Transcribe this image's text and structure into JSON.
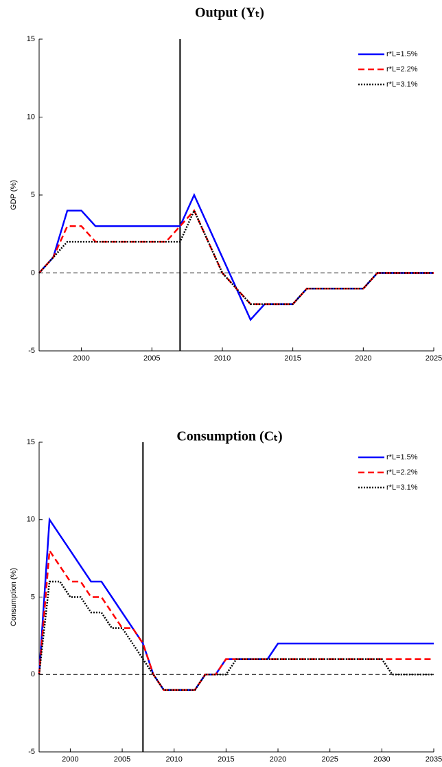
{
  "chart_data": [
    {
      "type": "line",
      "title": "Output (Yₜ)",
      "y_label": "GDP (%)",
      "x": [
        1997,
        1998,
        1999,
        2000,
        2001,
        2002,
        2003,
        2004,
        2005,
        2006,
        2007,
        2008,
        2009,
        2010,
        2011,
        2012,
        2013,
        2014,
        2015,
        2016,
        2017,
        2018,
        2019,
        2020,
        2021,
        2022,
        2023,
        2024,
        2025
      ],
      "series": [
        {
          "name": "r*L=1.5%",
          "color": "#0000ff",
          "style": "solid",
          "values": [
            0,
            1,
            4,
            4,
            3,
            3,
            3,
            3,
            3,
            3,
            3,
            5,
            3,
            1,
            -1,
            -3,
            -2,
            -2,
            -2,
            -1,
            -1,
            -1,
            -1,
            -1,
            0,
            0,
            0,
            0,
            0
          ]
        },
        {
          "name": "r*L=2.2%",
          "color": "#ff0000",
          "style": "dashed",
          "values": [
            0,
            1,
            3,
            3,
            2,
            2,
            2,
            2,
            2,
            2,
            3,
            4,
            2,
            0,
            -1,
            -2,
            -2,
            -2,
            -2,
            -1,
            -1,
            -1,
            -1,
            -1,
            0,
            0,
            0,
            0,
            0
          ]
        },
        {
          "name": "r*L=3.1%",
          "color": "#000000",
          "style": "dotted",
          "values": [
            0,
            1,
            2,
            2,
            2,
            2,
            2,
            2,
            2,
            2,
            2,
            4,
            2,
            0,
            -1,
            -2,
            -2,
            -2,
            -2,
            -1,
            -1,
            -1,
            -1,
            -1,
            0,
            0,
            0,
            0,
            0
          ]
        }
      ],
      "xlim": [
        1997,
        2025
      ],
      "xticks": [
        2000,
        2005,
        2010,
        2015,
        2020,
        2025
      ],
      "ylim": [
        -5,
        15
      ],
      "yticks": [
        -5,
        0,
        5,
        10,
        15
      ],
      "hline": 0,
      "vline": 2007,
      "legend": "top-right"
    },
    {
      "type": "line",
      "title": "Consumption (Cₜ)",
      "y_label": "Consumption (%)",
      "x": [
        1997,
        1998,
        1999,
        2000,
        2001,
        2002,
        2003,
        2004,
        2005,
        2006,
        2007,
        2008,
        2009,
        2010,
        2011,
        2012,
        2013,
        2014,
        2015,
        2016,
        2017,
        2018,
        2019,
        2020,
        2021,
        2022,
        2023,
        2024,
        2025,
        2026,
        2027,
        2028,
        2029,
        2030,
        2031,
        2032,
        2033,
        2034,
        2035
      ],
      "series": [
        {
          "name": "r*L=1.5%",
          "color": "#0000ff",
          "style": "solid",
          "values": [
            0,
            10,
            9,
            8,
            7,
            6,
            6,
            5,
            4,
            3,
            2,
            0,
            -1,
            -1,
            -1,
            -1,
            0,
            0,
            1,
            1,
            1,
            1,
            1,
            2,
            2,
            2,
            2,
            2,
            2,
            2,
            2,
            2,
            2,
            2,
            2,
            2,
            2,
            2,
            2
          ]
        },
        {
          "name": "r*L=2.2%",
          "color": "#ff0000",
          "style": "dashed",
          "values": [
            0,
            8,
            7,
            6,
            6,
            5,
            5,
            4,
            3,
            3,
            2,
            0,
            -1,
            -1,
            -1,
            -1,
            0,
            0,
            1,
            1,
            1,
            1,
            1,
            1,
            1,
            1,
            1,
            1,
            1,
            1,
            1,
            1,
            1,
            1,
            1,
            1,
            1,
            1,
            1
          ]
        },
        {
          "name": "r*L=3.1%",
          "color": "#000000",
          "style": "dotted",
          "values": [
            0,
            6,
            6,
            5,
            5,
            4,
            4,
            3,
            3,
            2,
            1,
            0,
            -1,
            -1,
            -1,
            -1,
            0,
            0,
            0,
            1,
            1,
            1,
            1,
            1,
            1,
            1,
            1,
            1,
            1,
            1,
            1,
            1,
            1,
            1,
            0,
            0,
            0,
            0,
            0
          ]
        }
      ],
      "xlim": [
        1997,
        2035
      ],
      "xticks": [
        2000,
        2005,
        2010,
        2015,
        2020,
        2025,
        2030,
        2035
      ],
      "ylim": [
        -5,
        15
      ],
      "yticks": [
        -5,
        0,
        5,
        10,
        15
      ],
      "hline": 0,
      "vline": 2007,
      "legend": "top-right"
    }
  ]
}
